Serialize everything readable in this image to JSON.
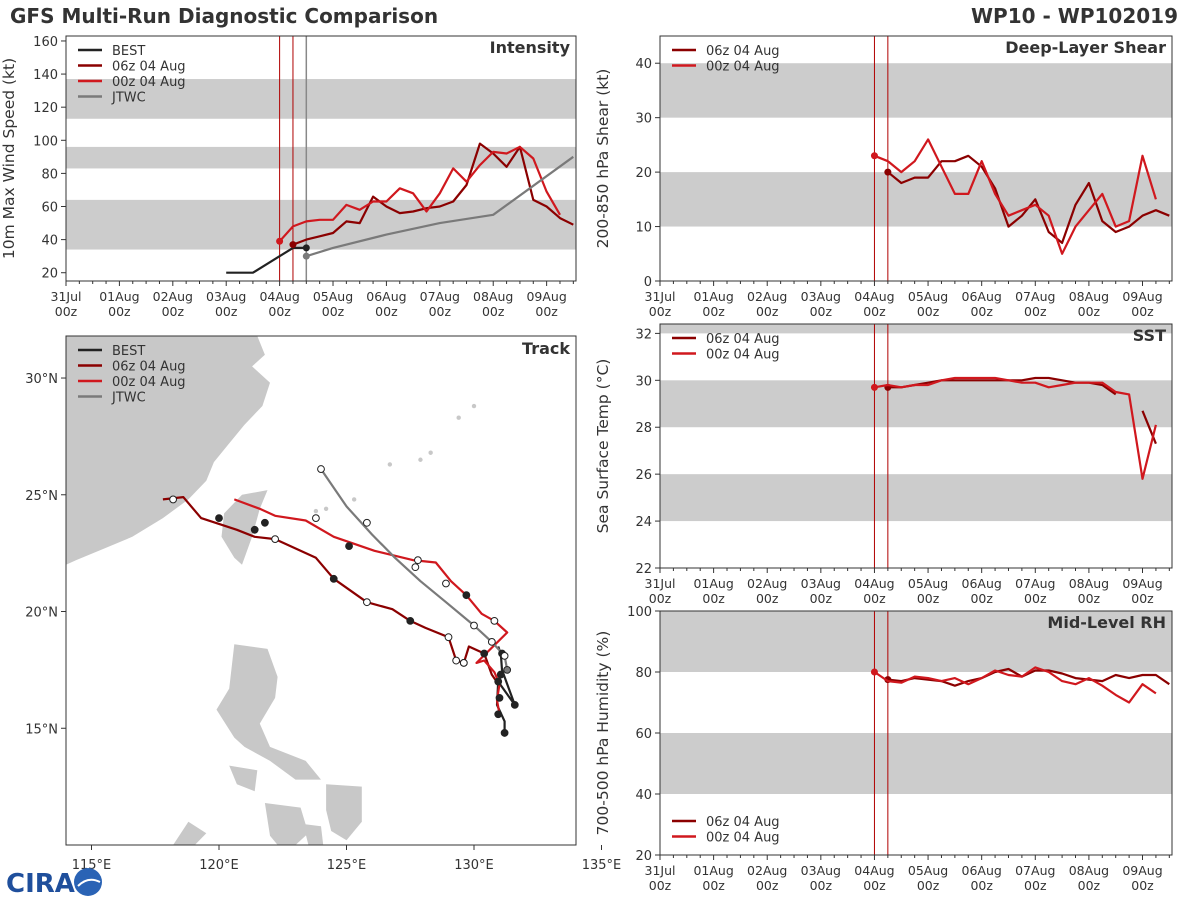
{
  "header": {
    "title": "GFS Multi-Run Diagnostic Comparison",
    "storm_id": "WP10 - WP102019"
  },
  "colors": {
    "best": "#222222",
    "run1": "#8b0000",
    "run2": "#d0181e",
    "jtwc": "#7a7a7a",
    "band": "#cccccc",
    "vline": "#b00000"
  },
  "icons": {
    "logo": "cira-logo-icon"
  },
  "logo_text": "CIRA",
  "time_axis": {
    "range": [
      0,
      9.55
    ],
    "ticks": [
      0,
      1,
      2,
      3,
      4,
      5,
      6,
      7,
      8,
      9
    ],
    "labels": [
      [
        "31Jul",
        "00z"
      ],
      [
        "01Aug",
        "00z"
      ],
      [
        "02Aug",
        "00z"
      ],
      [
        "03Aug",
        "00z"
      ],
      [
        "04Aug",
        "00z"
      ],
      [
        "05Aug",
        "00z"
      ],
      [
        "06Aug",
        "00z"
      ],
      [
        "07Aug",
        "00z"
      ],
      [
        "08Aug",
        "00z"
      ],
      [
        "09Aug",
        "00z"
      ]
    ],
    "init_lines": [
      4.0,
      4.25
    ]
  },
  "chart_data": [
    {
      "id": "intensity",
      "type": "line",
      "title": "Intensity",
      "ylabel": "10m Max Wind Speed (kt)",
      "ylim": [
        15,
        163
      ],
      "yticks": [
        20,
        40,
        60,
        80,
        100,
        120,
        140,
        160
      ],
      "bands": [
        [
          34,
          64
        ],
        [
          83,
          96
        ],
        [
          113,
          137
        ]
      ],
      "legend": [
        "BEST",
        "06z 04 Aug",
        "00z 04 Aug",
        "JTWC"
      ],
      "legend_keys": [
        "best",
        "run1",
        "run2",
        "jtwc"
      ],
      "series": [
        {
          "name": "BEST",
          "key": "best",
          "t": [
            3.0,
            3.25,
            3.5,
            3.75,
            4.0,
            4.25,
            4.5
          ],
          "v": [
            20,
            20,
            20,
            25,
            30,
            35,
            35
          ],
          "marker_index": 6
        },
        {
          "name": "06z 04 Aug",
          "key": "run1",
          "t": [
            4.25,
            4.5,
            4.75,
            5.0,
            5.25,
            5.5,
            5.75,
            6.0,
            6.25,
            6.5,
            6.75,
            7.0,
            7.25,
            7.5,
            7.75,
            8.0,
            8.25,
            8.5,
            8.75,
            9.0,
            9.25,
            9.5
          ],
          "v": [
            37,
            40,
            42,
            44,
            51,
            50,
            66,
            60,
            56,
            57,
            59,
            60,
            63,
            73,
            98,
            92,
            84,
            96,
            64,
            60,
            53,
            49
          ],
          "marker_index": 0
        },
        {
          "name": "00z 04 Aug",
          "key": "run2",
          "t": [
            4.0,
            4.25,
            4.5,
            4.75,
            5.0,
            5.25,
            5.5,
            5.75,
            6.0,
            6.25,
            6.5,
            6.75,
            7.0,
            7.25,
            7.5,
            7.75,
            8.0,
            8.25,
            8.5,
            8.75,
            9.0,
            9.25
          ],
          "v": [
            39,
            48,
            51,
            52,
            52,
            61,
            58,
            63,
            63,
            71,
            68,
            57,
            68,
            83,
            75,
            85,
            93,
            92,
            96,
            89,
            69,
            55
          ],
          "marker_index": 0
        },
        {
          "name": "JTWC",
          "key": "jtwc",
          "t": [
            4.5,
            5.0,
            6.0,
            7.0,
            8.0,
            9.5
          ],
          "v": [
            30,
            35,
            43,
            50,
            55,
            90
          ],
          "marker_index": 0
        }
      ]
    },
    {
      "id": "shear",
      "type": "line",
      "title": "Deep-Layer Shear",
      "ylabel": "200-850 hPa Shear (kt)",
      "ylim": [
        0,
        45
      ],
      "yticks": [
        0,
        10,
        20,
        30,
        40
      ],
      "bands": [
        [
          10,
          20
        ],
        [
          30,
          40
        ]
      ],
      "legend": [
        "06z 04 Aug",
        "00z 04 Aug"
      ],
      "legend_keys": [
        "run1",
        "run2"
      ],
      "series": [
        {
          "name": "06z 04 Aug",
          "key": "run1",
          "t": [
            4.25,
            4.5,
            4.75,
            5.0,
            5.25,
            5.5,
            5.75,
            6.0,
            6.25,
            6.5,
            6.75,
            7.0,
            7.25,
            7.5,
            7.75,
            8.0,
            8.25,
            8.5,
            8.75,
            9.0,
            9.25,
            9.5
          ],
          "v": [
            20,
            18,
            19,
            19,
            22,
            22,
            23,
            21,
            17,
            10,
            12,
            15,
            9,
            7,
            14,
            18,
            11,
            9,
            10,
            12,
            13,
            12
          ],
          "marker_index": 0
        },
        {
          "name": "00z 04 Aug",
          "key": "run2",
          "t": [
            4.0,
            4.25,
            4.5,
            4.75,
            5.0,
            5.25,
            5.5,
            5.75,
            6.0,
            6.25,
            6.5,
            6.75,
            7.0,
            7.25,
            7.5,
            7.75,
            8.0,
            8.25,
            8.5,
            8.75,
            9.0,
            9.25
          ],
          "v": [
            23,
            22,
            20,
            22,
            26,
            21,
            16,
            16,
            22,
            16,
            12,
            13,
            14,
            12,
            5,
            10,
            13,
            16,
            10,
            11,
            23,
            15
          ],
          "marker_index": 0
        }
      ]
    },
    {
      "id": "sst",
      "type": "line",
      "title": "SST",
      "ylabel": "Sea Surface Temp (°C)",
      "ylim": [
        22,
        32.4
      ],
      "yticks": [
        22,
        24,
        26,
        28,
        30,
        32
      ],
      "bands": [
        [
          24,
          26
        ],
        [
          28,
          30
        ],
        [
          32,
          32.4
        ]
      ],
      "legend": [
        "06z 04 Aug",
        "00z 04 Aug"
      ],
      "legend_keys": [
        "run1",
        "run2"
      ],
      "series": [
        {
          "name": "06z 04 Aug",
          "key": "run1",
          "t": [
            4.25,
            4.5,
            4.75,
            5.0,
            5.25,
            5.5,
            5.75,
            6.0,
            6.25,
            6.5,
            6.75,
            7.0,
            7.25,
            7.5,
            7.75,
            8.0,
            8.25,
            8.5
          ],
          "v": [
            29.7,
            29.7,
            29.8,
            29.9,
            30.0,
            30.0,
            30.0,
            30.0,
            30.0,
            30.0,
            30.0,
            30.1,
            30.1,
            30.0,
            29.9,
            29.9,
            29.8,
            29.4
          ],
          "marker_index": 0
        },
        {
          "name": "06z 04 Aug tail",
          "key": "run1",
          "t": [
            9.0,
            9.25
          ],
          "v": [
            28.7,
            27.3
          ],
          "marker_index": -1
        },
        {
          "name": "00z 04 Aug",
          "key": "run2",
          "t": [
            4.0,
            4.25,
            4.5,
            4.75,
            5.0,
            5.25,
            5.5,
            5.75,
            6.0,
            6.25,
            6.5,
            6.75,
            7.0,
            7.25,
            7.5,
            7.75,
            8.0,
            8.25,
            8.5,
            8.75,
            9.0,
            9.25
          ],
          "v": [
            29.7,
            29.8,
            29.7,
            29.8,
            29.8,
            30.0,
            30.1,
            30.1,
            30.1,
            30.1,
            30.0,
            29.9,
            29.9,
            29.7,
            29.8,
            29.9,
            29.9,
            29.9,
            29.5,
            29.4,
            25.8,
            28.1
          ],
          "marker_index": 0
        }
      ]
    },
    {
      "id": "rh",
      "type": "line",
      "title": "Mid-Level RH",
      "ylabel": "700-500 hPa Humidity (%)",
      "ylim": [
        20,
        100
      ],
      "yticks": [
        20,
        40,
        60,
        80,
        100
      ],
      "bands": [
        [
          40,
          60
        ],
        [
          80,
          100
        ]
      ],
      "legend": [
        "06z 04 Aug",
        "00z 04 Aug"
      ],
      "legend_keys": [
        "run1",
        "run2"
      ],
      "series": [
        {
          "name": "06z 04 Aug",
          "key": "run1",
          "t": [
            4.25,
            4.5,
            4.75,
            5.0,
            5.25,
            5.5,
            5.75,
            6.0,
            6.25,
            6.5,
            6.75,
            7.0,
            7.25,
            7.5,
            7.75,
            8.0,
            8.25,
            8.5,
            8.75,
            9.0,
            9.25,
            9.5
          ],
          "v": [
            77.5,
            77,
            78,
            77.5,
            77,
            75.5,
            77,
            78,
            80,
            81,
            78.5,
            80.5,
            80.5,
            79.5,
            78,
            77.5,
            77,
            79,
            78,
            79,
            79,
            76
          ],
          "marker_index": 0
        },
        {
          "name": "00z 04 Aug",
          "key": "run2",
          "t": [
            4.0,
            4.25,
            4.5,
            4.75,
            5.0,
            5.25,
            5.5,
            5.75,
            6.0,
            6.25,
            6.5,
            6.75,
            7.0,
            7.25,
            7.5,
            7.75,
            8.0,
            8.25,
            8.5,
            8.75,
            9.0,
            9.25
          ],
          "v": [
            80,
            77,
            76.5,
            78.5,
            78,
            77,
            78,
            76,
            78,
            80.5,
            79,
            78.5,
            81.5,
            80,
            77,
            76,
            78,
            75.5,
            72.5,
            70,
            76,
            73
          ],
          "marker_index": 0
        }
      ]
    },
    {
      "id": "track",
      "type": "scatter",
      "title": "Track",
      "xlim": [
        114.0,
        134.0
      ],
      "ylim": [
        10.0,
        31.8
      ],
      "xticks": [
        115,
        120,
        125,
        130,
        135
      ],
      "xtick_labels": [
        "115°E",
        "120°E",
        "125°E",
        "130°E",
        "135°E"
      ],
      "yticks": [
        15,
        20,
        25,
        30
      ],
      "ytick_labels": [
        "15°N",
        "20°N",
        "25°N",
        "30°N"
      ],
      "legend": [
        "BEST",
        "06z 04 Aug",
        "00z 04 Aug",
        "JTWC"
      ],
      "legend_keys": [
        "best",
        "run1",
        "run2",
        "jtwc"
      ],
      "series": [
        {
          "name": "BEST",
          "key": "best",
          "lon": [
            131.2,
            131.2,
            130.9,
            130.95,
            131.6,
            131.1,
            131.05,
            130.95
          ],
          "lat": [
            14.8,
            15.3,
            16.0,
            17.0,
            16.0,
            17.5,
            18.2,
            18.5
          ],
          "markers": [
            [
              131.2,
              14.8,
              "f"
            ],
            [
              130.95,
              17.0,
              "f"
            ],
            [
              131.1,
              18.2,
              "f"
            ],
            [
              131.6,
              16.0,
              "f"
            ]
          ]
        },
        {
          "name": "06z 04 Aug",
          "key": "run1",
          "lon": [
            131.05,
            131.0,
            130.95,
            130.7,
            130.4,
            129.8,
            129.6,
            129.3,
            129.0,
            128.1,
            127.5,
            126.8,
            125.8,
            124.5,
            123.8,
            122.2,
            121.4,
            120.7,
            119.3,
            118.6,
            117.8
          ],
          "lat": [
            17.3,
            17.1,
            16.9,
            17.3,
            18.2,
            18.5,
            17.8,
            17.9,
            18.9,
            19.3,
            19.6,
            20.1,
            20.4,
            21.4,
            22.3,
            23.1,
            23.2,
            23.5,
            24.0,
            24.9,
            24.8
          ],
          "markers": [
            [
              131.05,
              17.3,
              "f"
            ],
            [
              130.4,
              18.2,
              "f"
            ],
            [
              129.6,
              17.8,
              "f"
            ],
            [
              129.3,
              17.9,
              "o"
            ],
            [
              129.0,
              18.9,
              "o"
            ],
            [
              127.5,
              19.6,
              "f"
            ],
            [
              125.8,
              20.4,
              "o"
            ],
            [
              124.5,
              21.4,
              "f"
            ],
            [
              122.2,
              23.1,
              "o"
            ],
            [
              121.4,
              23.5,
              "f"
            ],
            [
              120.0,
              24.0,
              "f"
            ],
            [
              118.2,
              24.8,
              "o"
            ]
          ]
        },
        {
          "name": "00z 04 Aug",
          "key": "run2",
          "lon": [
            131.0,
            130.9,
            131.0,
            130.8,
            130.4,
            130.1,
            131.3,
            130.8,
            130.3,
            129.7,
            129.1,
            128.5,
            127.6,
            126.1,
            124.5,
            123.4,
            122.2,
            121.6,
            120.6
          ],
          "lat": [
            15.6,
            16.2,
            16.9,
            17.4,
            17.9,
            17.8,
            19.1,
            19.6,
            19.9,
            20.7,
            21.3,
            22.1,
            22.2,
            22.6,
            23.2,
            23.9,
            24.1,
            24.4,
            24.8
          ],
          "markers": [
            [
              131.0,
              16.3,
              "f"
            ],
            [
              130.95,
              15.6,
              "f"
            ],
            [
              129.6,
              17.8,
              "o"
            ],
            [
              130.8,
              19.6,
              "o"
            ],
            [
              129.7,
              20.7,
              "f"
            ],
            [
              127.7,
              21.9,
              "o"
            ],
            [
              125.1,
              22.8,
              "f"
            ],
            [
              123.8,
              24.0,
              "o"
            ],
            [
              121.8,
              23.8,
              "f"
            ]
          ]
        },
        {
          "name": "JTWC",
          "key": "jtwc",
          "lon": [
            131.3,
            131.2,
            130.7,
            130.0,
            128.9,
            127.9,
            126.9,
            126.0,
            125.0,
            124.0
          ],
          "lat": [
            17.5,
            18.1,
            18.7,
            19.4,
            20.4,
            21.3,
            22.3,
            23.3,
            24.5,
            26.1
          ],
          "markers": [
            [
              131.3,
              17.5,
              "g"
            ],
            [
              131.2,
              18.1,
              "o"
            ],
            [
              130.7,
              18.7,
              "o"
            ],
            [
              130.0,
              19.4,
              "o"
            ],
            [
              128.9,
              21.2,
              "o"
            ],
            [
              127.8,
              22.2,
              "o"
            ],
            [
              125.8,
              23.8,
              "o"
            ],
            [
              124.0,
              26.1,
              "o"
            ]
          ]
        }
      ]
    }
  ]
}
